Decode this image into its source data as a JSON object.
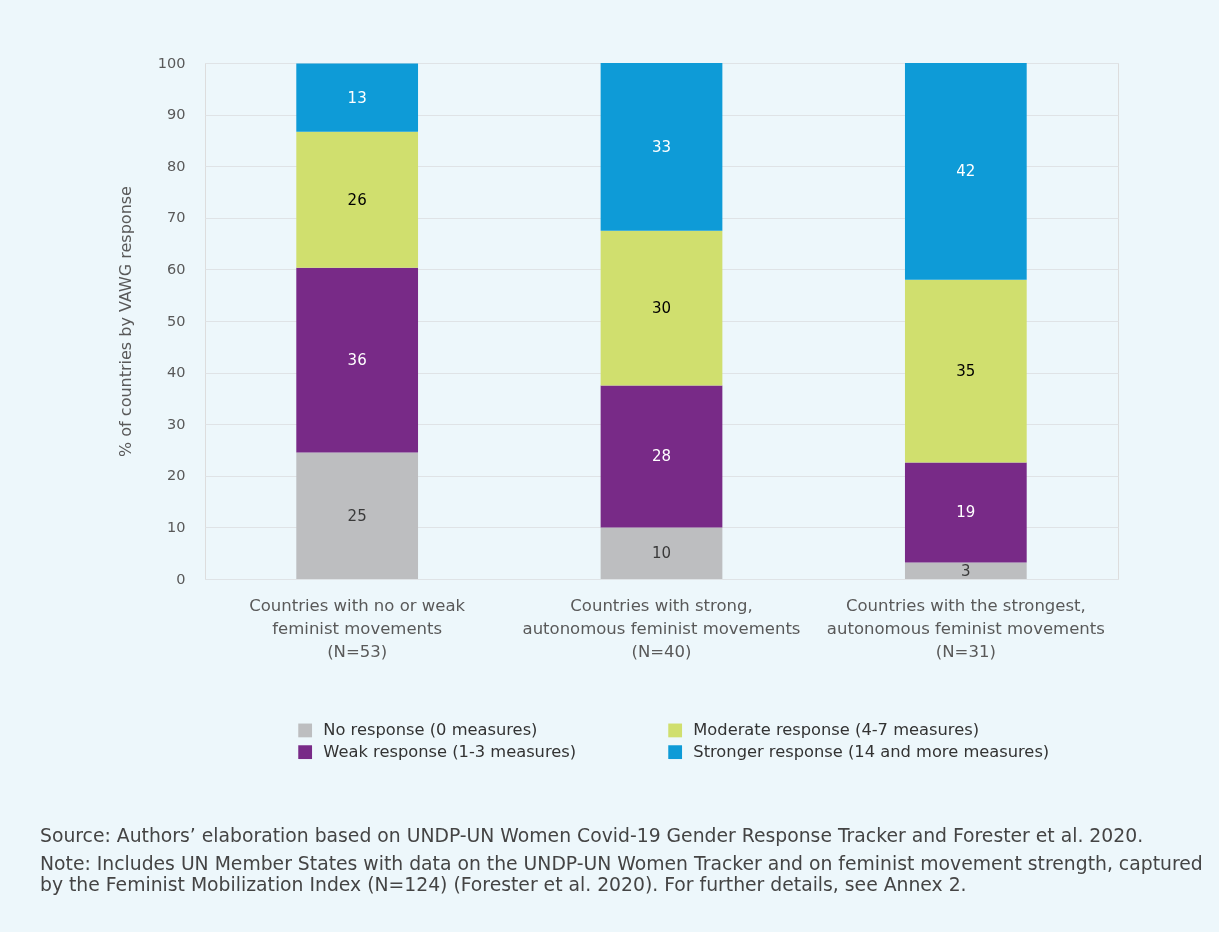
{
  "chart_data": {
    "type": "bar",
    "stacked": true,
    "ylabel": "% of countries by VAWG response",
    "categories": [
      "Countries with no or weak\nfeminist movements\n(N=53)",
      "Countries with strong,\nautonomous feminist movements\n(N=40)",
      "Countries with the strongest,\nautonomous feminist movements\n(N=31)"
    ],
    "series": [
      {
        "name": "No response (0 measures)",
        "color": "#bdbec0",
        "values": [
          24.5,
          10,
          3.2
        ],
        "value_labels": [
          "25",
          "10",
          "3"
        ]
      },
      {
        "name": "Weak response (1-3 measures)",
        "color": "#782a87",
        "values": [
          35.8,
          27.5,
          19.4
        ],
        "value_labels": [
          "36",
          "28",
          "19"
        ]
      },
      {
        "name": "Moderate response (4-7 measures)",
        "color": "#d0df6e",
        "values": [
          26.4,
          30,
          35.4
        ],
        "value_labels": [
          "26",
          "30",
          "35"
        ]
      },
      {
        "name": "Stronger response (14 and more measures)",
        "color": "#0e9bd7",
        "values": [
          13.2,
          32.5,
          42
        ],
        "value_labels": [
          "13",
          "33",
          "42"
        ]
      }
    ],
    "ylim": [
      0,
      100
    ],
    "yticks": [
      0,
      10,
      20,
      30,
      40,
      50,
      60,
      70,
      80,
      90,
      100
    ],
    "grid": "y",
    "legend": "bottom",
    "annotations": [
      "Source: Authors’ elaboration based on UNDP-UN Women Covid-19 Gender Response Tracker and Forester et al. 2020.",
      "Note: Includes UN Member States with data on the UNDP-UN Women Tracker and on feminist movement strength, captured\nby the Feminist Mobilization Index (N=124) (Forester et al. 2020). For further details, see Annex 2."
    ]
  }
}
